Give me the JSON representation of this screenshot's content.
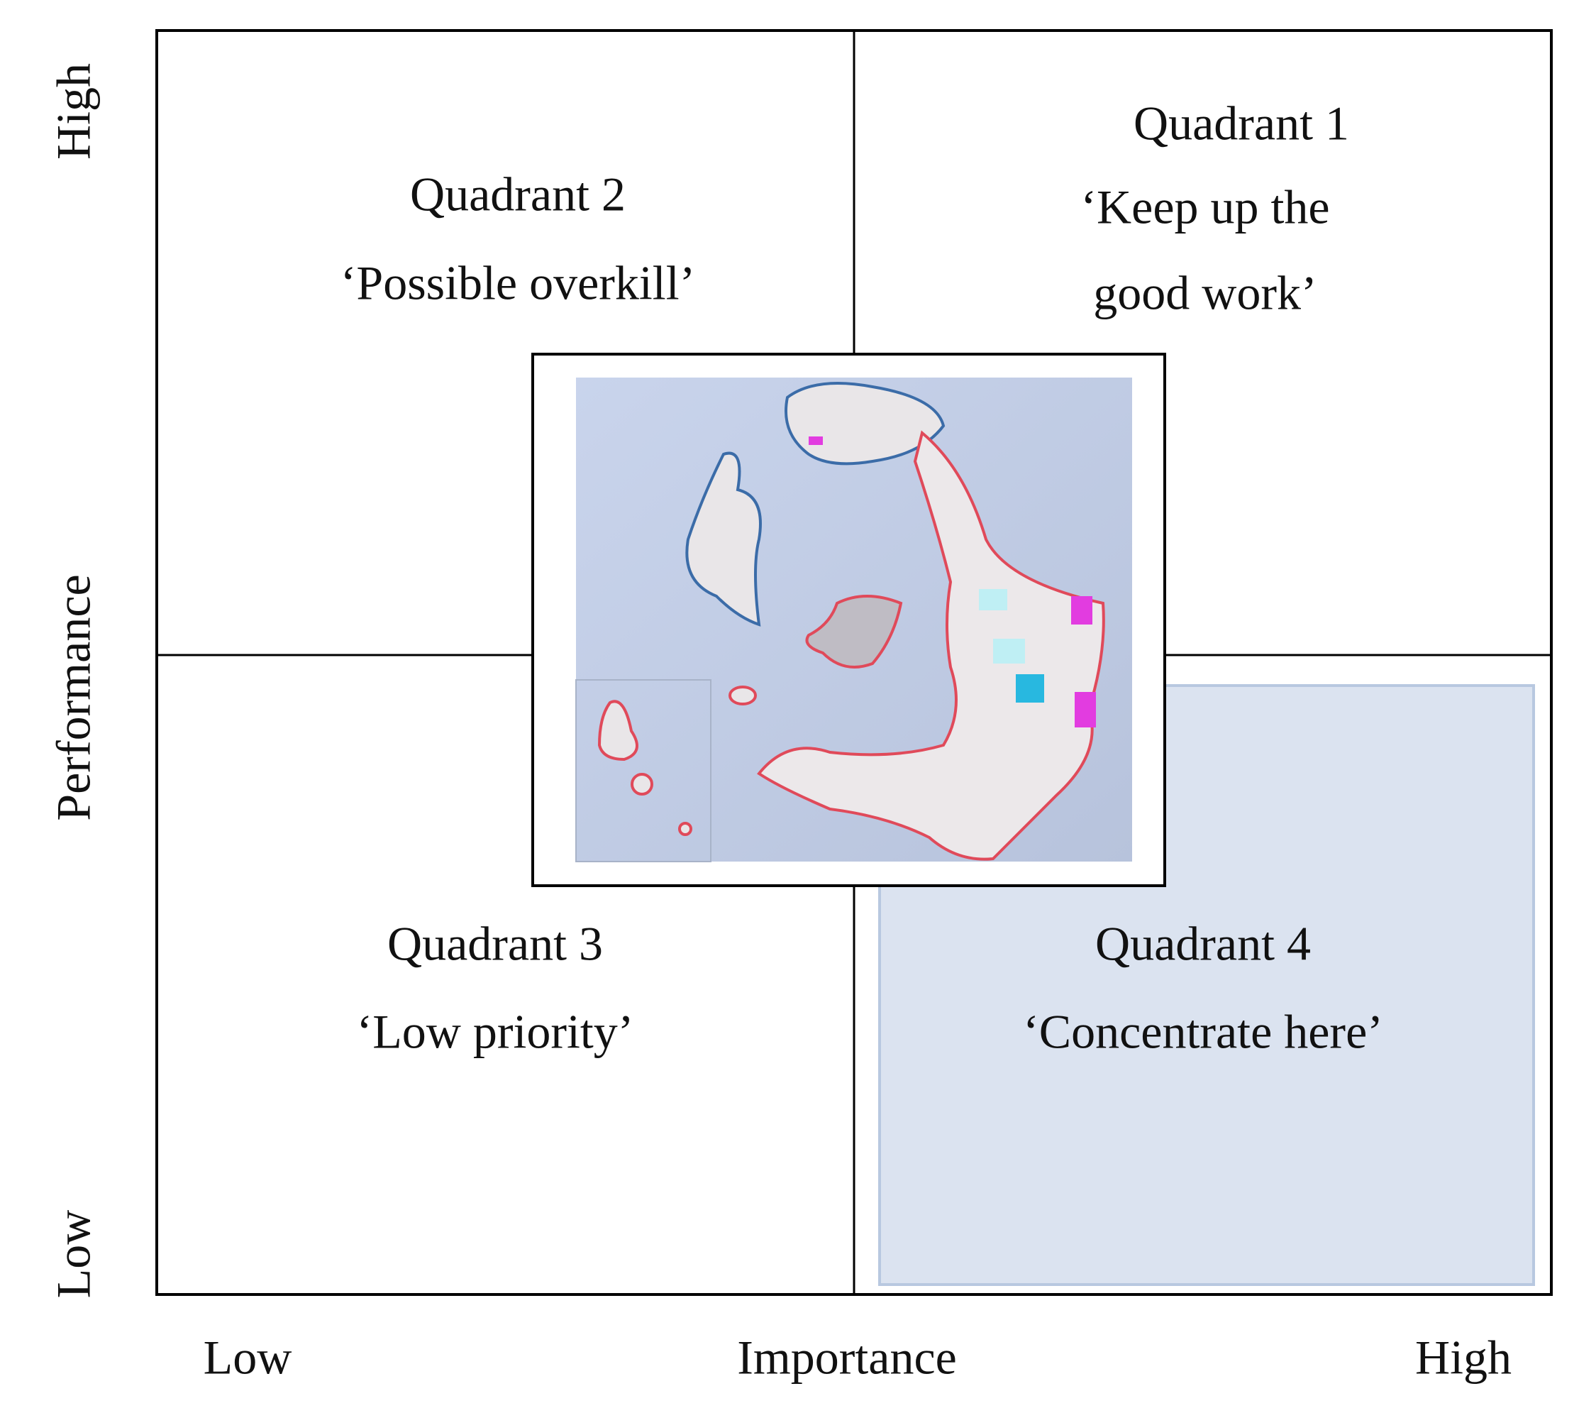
{
  "quadrants": [
    {
      "title": "Quadrant 1",
      "label": [
        "‘Keep up the",
        "good work’"
      ]
    },
    {
      "title": "Quadrant 2",
      "label": [
        "‘Possible overkill’"
      ]
    },
    {
      "title": "Quadrant 3",
      "label": [
        "‘Low priority’"
      ]
    },
    {
      "title": "Quadrant 4",
      "label": [
        "‘Concentrate here’"
      ]
    }
  ],
  "x_axis": {
    "title": "Importance",
    "low": "Low",
    "high": "High"
  },
  "y_axis": {
    "title": "Performance",
    "low": "Low",
    "high": "High"
  }
}
